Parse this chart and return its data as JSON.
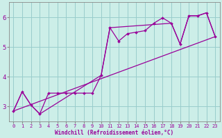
{
  "xlabel": "Windchill (Refroidissement éolien,°C)",
  "bg_color": "#cceee8",
  "grid_color": "#99cccc",
  "line_color": "#990099",
  "spine_color": "#888888",
  "xlim": [
    -0.5,
    23.5
  ],
  "ylim": [
    2.5,
    6.5
  ],
  "yticks": [
    3,
    4,
    5,
    6
  ],
  "xticks": [
    0,
    1,
    2,
    3,
    4,
    5,
    6,
    7,
    8,
    9,
    10,
    11,
    12,
    13,
    14,
    15,
    16,
    17,
    18,
    19,
    20,
    21,
    22,
    23
  ],
  "line1_x": [
    0,
    1,
    2,
    3,
    4,
    5,
    6,
    7,
    8,
    9,
    10,
    11,
    12,
    13,
    14,
    15,
    16,
    17,
    18,
    19,
    20,
    21,
    22,
    23
  ],
  "line1_y": [
    2.85,
    3.5,
    3.05,
    2.75,
    3.45,
    3.45,
    3.45,
    3.45,
    3.45,
    3.45,
    4.05,
    5.65,
    5.2,
    5.45,
    5.5,
    5.55,
    5.8,
    5.98,
    5.8,
    5.1,
    6.05,
    6.05,
    6.15,
    5.35
  ],
  "line2_x": [
    0,
    23
  ],
  "line2_y": [
    2.85,
    5.35
  ],
  "line3_x": [
    0,
    1,
    2,
    3,
    10,
    11,
    18,
    19,
    20,
    21,
    22,
    23
  ],
  "line3_y": [
    2.85,
    3.5,
    3.05,
    2.75,
    4.05,
    5.65,
    5.8,
    5.1,
    6.05,
    6.05,
    6.15,
    5.35
  ]
}
